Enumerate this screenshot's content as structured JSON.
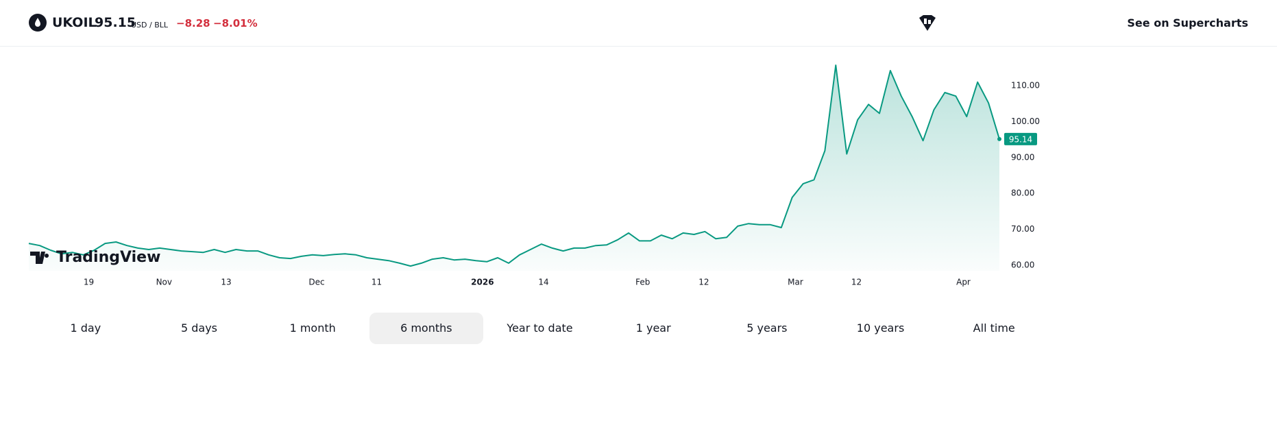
{
  "header": {
    "symbol": "UKOIL",
    "price": "95.15",
    "unit": "USD / BLL",
    "change": "−8.28",
    "change_percent": "−8.01%",
    "link": "See on Supercharts"
  },
  "periods": [
    "1 day",
    "5 days",
    "1 month",
    "6 months",
    "Year to date",
    "1 year",
    "5 years",
    "10 years",
    "All time"
  ],
  "chart_data": {
    "type": "area",
    "watermark": "TradingView",
    "color": "#089981",
    "values": [
      66.1,
      65.5,
      64.2,
      63.2,
      63.6,
      62.9,
      64.2,
      66.1,
      66.5,
      65.5,
      64.8,
      64.4,
      64.8,
      64.4,
      64,
      63.8,
      63.6,
      64.4,
      63.6,
      64.4,
      64,
      64,
      62.9,
      62.1,
      61.9,
      62.5,
      62.9,
      62.7,
      63,
      63.2,
      62.9,
      62.1,
      61.7,
      61.3,
      60.6,
      59.8,
      60.6,
      61.7,
      62.1,
      61.5,
      61.7,
      61.3,
      61,
      62.1,
      60.6,
      62.9,
      64.4,
      65.9,
      64.8,
      64,
      64.8,
      64.8,
      65.5,
      65.7,
      67.1,
      69,
      66.8,
      66.8,
      68.4,
      67.4,
      69,
      68.6,
      69.4,
      67.4,
      67.8,
      70.9,
      71.6,
      71.3,
      71.3,
      70.5,
      78.9,
      82.7,
      83.8,
      91.9,
      115.7,
      91,
      100.5,
      104.8,
      102.3,
      114.2,
      107.1,
      101.4,
      94.7,
      103.3,
      108.1,
      107.1,
      101.4,
      111,
      105.2,
      95.14
    ],
    "xlim": [
      0,
      89
    ],
    "xticks": [
      {
        "value": 5.5,
        "label": "19"
      },
      {
        "value": 12.4,
        "label": "Nov"
      },
      {
        "value": 18.1,
        "label": "13"
      },
      {
        "value": 26.4,
        "label": "Dec"
      },
      {
        "value": 31.9,
        "label": "11"
      },
      {
        "value": 41.6,
        "label": "2026"
      },
      {
        "value": 47.2,
        "label": "14"
      },
      {
        "value": 56.3,
        "label": "Feb"
      },
      {
        "value": 61.9,
        "label": "12"
      },
      {
        "value": 70.3,
        "label": "Mar"
      },
      {
        "value": 75.9,
        "label": "12"
      },
      {
        "value": 85.7,
        "label": "Apr"
      }
    ],
    "ylim": [
      58.5,
      117.5
    ],
    "yticks": [
      {
        "value": 60,
        "label": "60.00"
      },
      {
        "value": 70,
        "label": "70.00"
      },
      {
        "value": 80,
        "label": "80.00"
      },
      {
        "value": 90,
        "label": "90.00"
      },
      {
        "value": 100,
        "label": "100.00"
      },
      {
        "value": 110,
        "label": "110.00"
      }
    ]
  }
}
